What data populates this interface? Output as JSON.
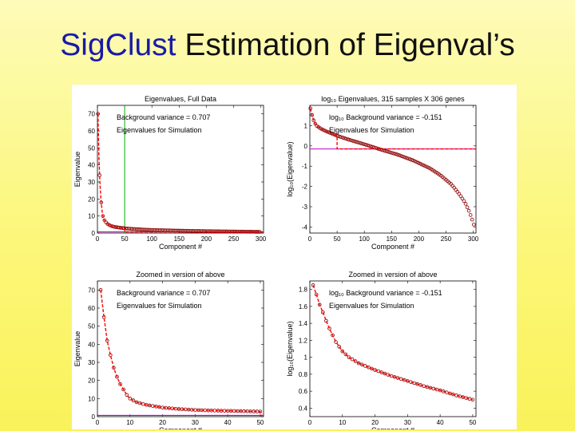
{
  "slide": {
    "title_highlight": "SigClust",
    "title_rest": " Estimation of Eigenval’s"
  },
  "colors": {
    "background": "#fcf77a",
    "title_highlight": "#1a1aa8",
    "data": "#8b0000",
    "simulation": "#ff0000",
    "background_variance": "#c000c0",
    "cutoff_line": "#00b000"
  },
  "chart_data": [
    {
      "id": "tl",
      "type": "line",
      "title": "Eigenvalues, Full Data",
      "xlabel": "Component #",
      "ylabel": "Eigenvalue",
      "xlim": [
        0,
        305
      ],
      "ylim": [
        0,
        75
      ],
      "xticks": [
        0,
        50,
        100,
        150,
        200,
        250,
        300
      ],
      "yticks": [
        0,
        10,
        20,
        30,
        40,
        50,
        60,
        70
      ],
      "legend": [
        {
          "label": "Background variance = 0.707",
          "color": "#c000c0"
        },
        {
          "label": "Eigenvalues for Simulation",
          "color": "#ff0000"
        }
      ],
      "hline": 0.707,
      "vline": 50,
      "sim_cutoff": 50,
      "series": {
        "x": [
          1,
          2,
          3,
          4,
          5,
          6,
          7,
          8,
          9,
          10,
          12,
          15,
          20,
          25,
          30,
          40,
          50,
          60,
          80,
          100,
          150,
          200,
          250,
          300
        ],
        "values": [
          70,
          55,
          42,
          34,
          27,
          22,
          18,
          15,
          12,
          10,
          8,
          6.5,
          5,
          4.2,
          3.7,
          3.2,
          2.8,
          2.5,
          2.1,
          1.8,
          1.4,
          1.1,
          0.9,
          0.7
        ]
      }
    },
    {
      "id": "tr",
      "type": "line",
      "title": "log₁₀ Eigenvalues, 315 samples X 306 genes",
      "xlabel": "Component #",
      "ylabel": "log₁₀(Eigenvalue)",
      "xlim": [
        0,
        305
      ],
      "ylim": [
        -4.3,
        2
      ],
      "xticks": [
        0,
        50,
        100,
        150,
        200,
        250,
        300
      ],
      "yticks": [
        -4,
        -3,
        -2,
        -1,
        0,
        1
      ],
      "legend": [
        {
          "label": "log₁₀ Background variance = -0.151",
          "color": "#c000c0"
        },
        {
          "label": "Eigenvalues for Simulation",
          "color": "#ff0000"
        }
      ],
      "hline": -0.151,
      "sim_cutoff": 50,
      "series": {
        "x": [
          1,
          2,
          3,
          5,
          8,
          12,
          20,
          30,
          50,
          75,
          100,
          130,
          160,
          190,
          220,
          240,
          260,
          275,
          285,
          292,
          297,
          300,
          303
        ],
        "values": [
          1.85,
          1.74,
          1.62,
          1.43,
          1.18,
          1.0,
          0.85,
          0.72,
          0.5,
          0.28,
          0.08,
          -0.18,
          -0.42,
          -0.72,
          -1.1,
          -1.45,
          -1.9,
          -2.4,
          -2.8,
          -3.2,
          -3.55,
          -3.8,
          -4.05
        ]
      }
    },
    {
      "id": "bl",
      "type": "line",
      "title": "Zoomed in version of above",
      "xlabel": "Component #",
      "ylabel": "Eigenvalue",
      "xlim": [
        0,
        51
      ],
      "ylim": [
        0,
        75
      ],
      "xticks": [
        0,
        10,
        20,
        30,
        40,
        50
      ],
      "yticks": [
        0,
        10,
        20,
        30,
        40,
        50,
        60,
        70
      ],
      "legend": [
        {
          "label": "Background variance = 0.707",
          "color": "#c000c0"
        },
        {
          "label": "Eigenvalues for Simulation",
          "color": "#ff0000"
        }
      ],
      "hline": 0.707,
      "sim_cutoff": 50,
      "series": {
        "x": [
          1,
          2,
          3,
          4,
          5,
          6,
          7,
          8,
          9,
          10,
          12,
          15,
          20,
          25,
          30,
          35,
          40,
          45,
          50
        ],
        "values": [
          70,
          55,
          42,
          34,
          27,
          22,
          18,
          15,
          12,
          10,
          8,
          6.5,
          5,
          4.2,
          3.7,
          3.4,
          3.2,
          3.0,
          2.8
        ]
      }
    },
    {
      "id": "br",
      "type": "line",
      "title": "Zoomed in version of above",
      "xlabel": "Component #",
      "ylabel": "log₁₀(Eigenvalue)",
      "xlim": [
        0,
        51
      ],
      "ylim": [
        0.3,
        1.9
      ],
      "xticks": [
        0,
        10,
        20,
        30,
        40,
        50
      ],
      "yticks": [
        0.4,
        0.6,
        0.8,
        1,
        1.2,
        1.4,
        1.6,
        1.8
      ],
      "legend": [
        {
          "label": "log₁₀ Background variance = -0.151",
          "color": "#c000c0"
        },
        {
          "label": "Eigenvalues for Simulation",
          "color": "#ff0000"
        }
      ],
      "sim_cutoff": 50,
      "series": {
        "x": [
          1,
          2,
          3,
          4,
          5,
          6,
          7,
          8,
          10,
          12,
          15,
          20,
          25,
          30,
          35,
          40,
          45,
          50
        ],
        "values": [
          1.85,
          1.74,
          1.62,
          1.53,
          1.43,
          1.34,
          1.26,
          1.18,
          1.07,
          1.0,
          0.93,
          0.85,
          0.78,
          0.72,
          0.66,
          0.61,
          0.55,
          0.5
        ]
      }
    }
  ]
}
